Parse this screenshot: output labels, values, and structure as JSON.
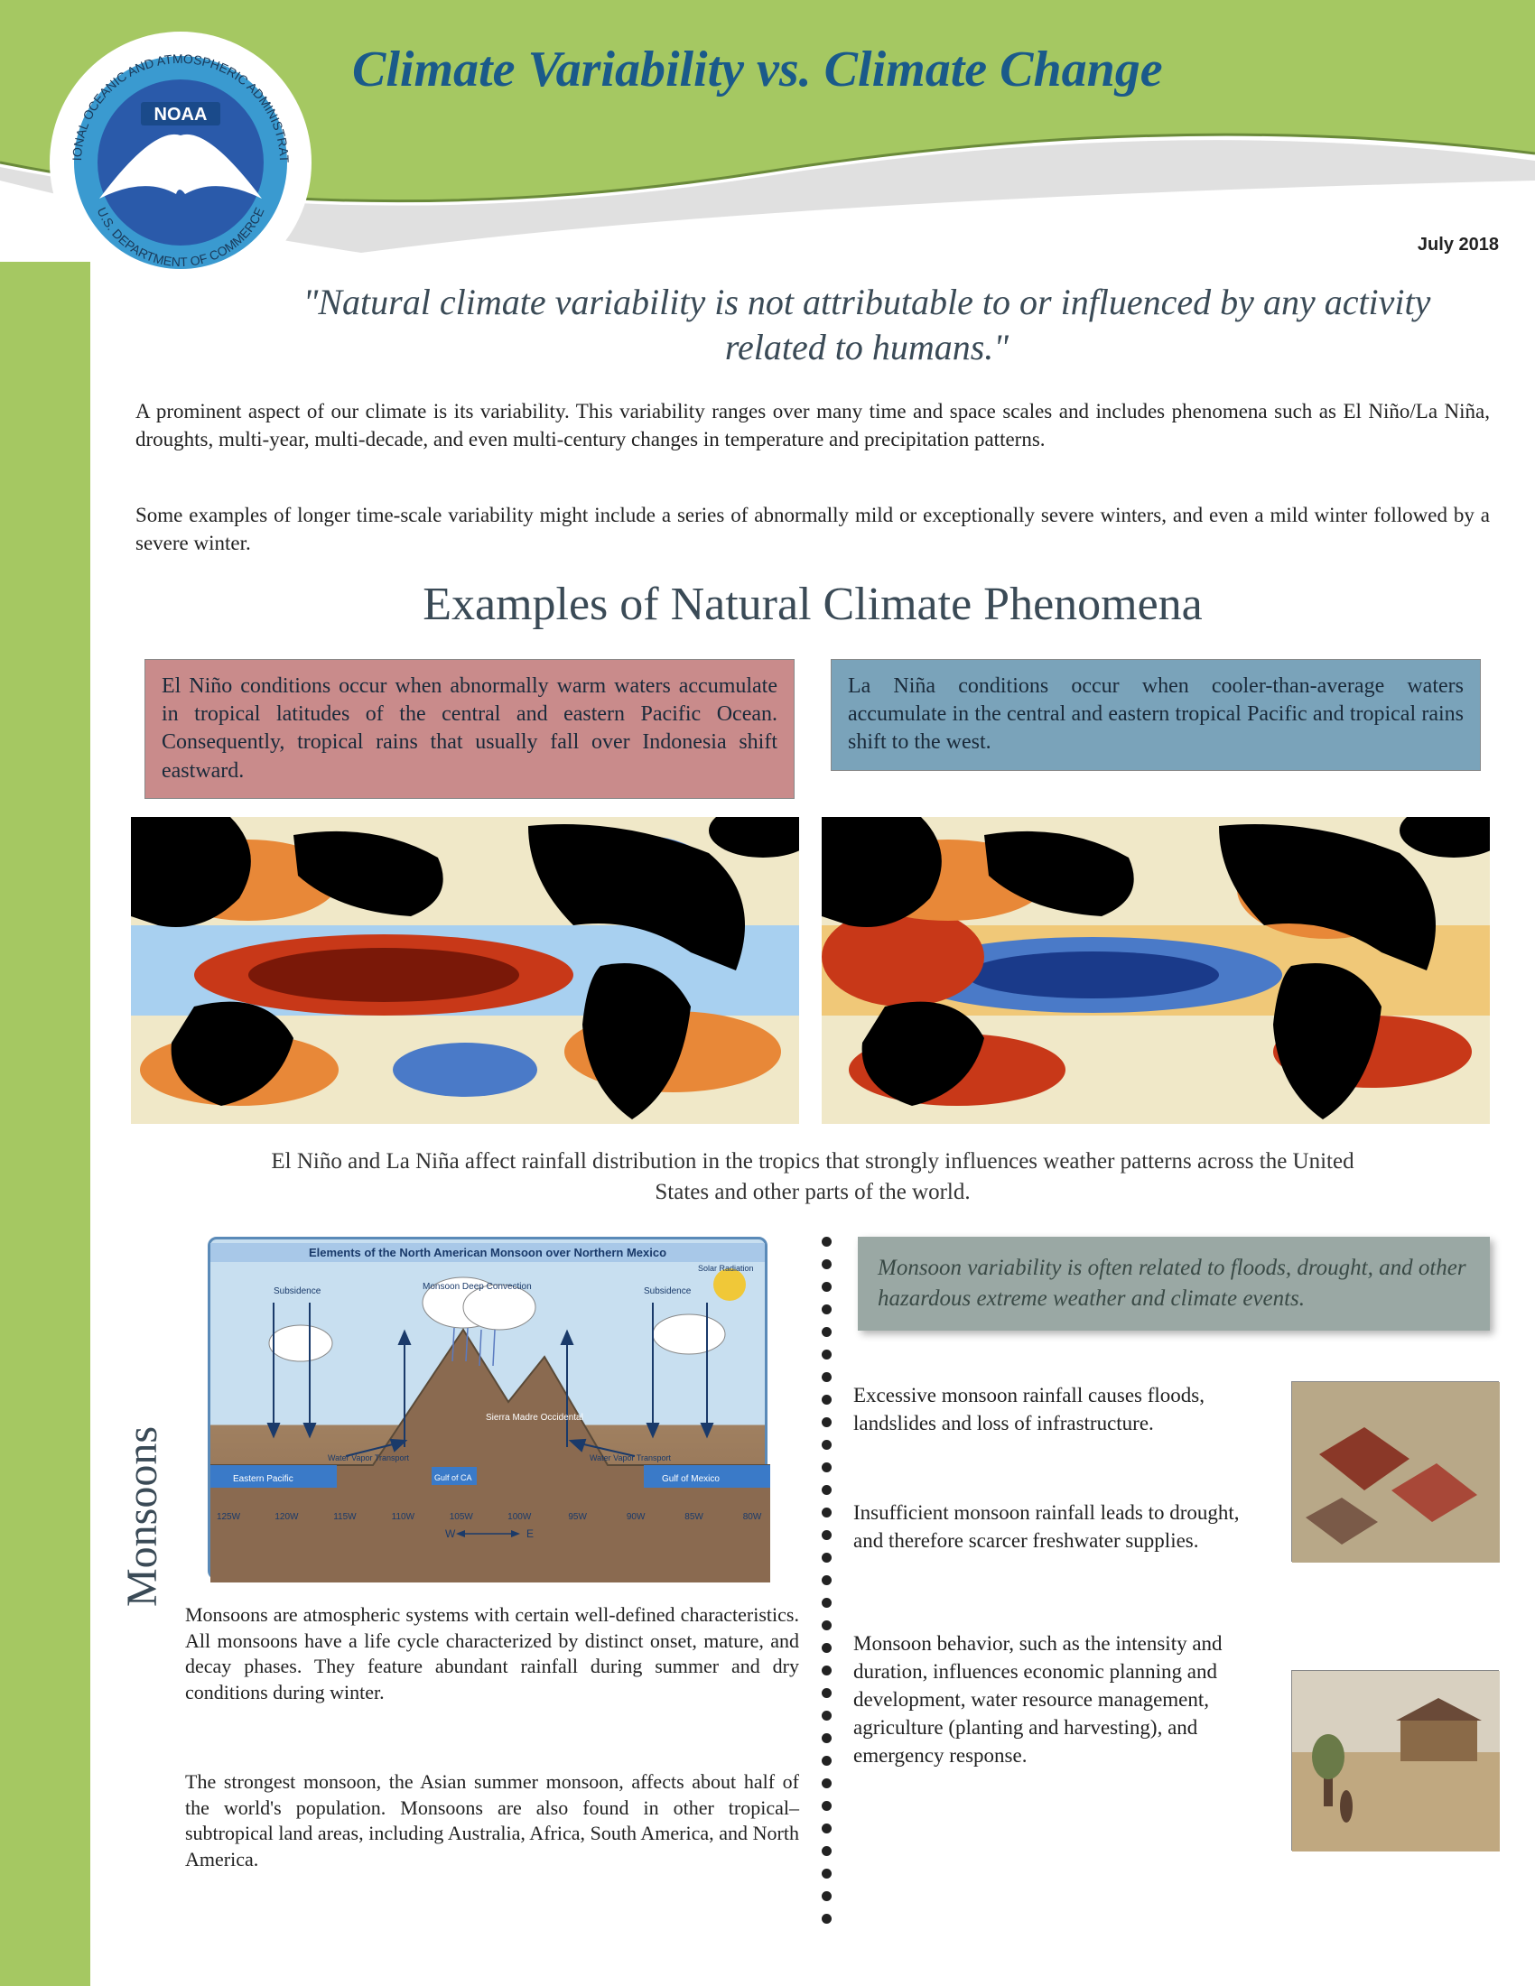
{
  "header": {
    "title": "Climate Variability vs. Climate Change",
    "date": "July 2018",
    "logo_text_top": "NATIONAL OCEANIC AND ATMOSPHERIC ADMINISTRATION",
    "logo_text_bottom": "U.S. DEPARTMENT OF COMMERCE",
    "logo_label": "NOAA",
    "title_color": "#1a5a8a",
    "band_color": "#a5c862"
  },
  "quote": "\"Natural climate variability is not attributable to or influenced by any activity related to humans.\"",
  "intro": {
    "p1": "A prominent aspect of our climate is its variability. This variability ranges over many time and space scales and includes phenomena such as El Niño/La Niña, droughts, multi-year, multi-decade, and even multi-century changes in temperature and precipitation patterns.",
    "p2": "Some examples of longer time-scale variability might include a series of abnormally mild or exceptionally severe winters, and even a mild winter followed by a severe winter."
  },
  "section_title": "Examples of Natural Climate Phenomena",
  "boxes": {
    "elnino": {
      "text": "El Niño conditions occur when abnormally warm waters accumulate in tropical latitudes of the central and eastern Pacific Ocean. Consequently, tropical rains that usually fall over Indonesia shift eastward.",
      "bg": "#c98b8b"
    },
    "lanina": {
      "text": "La Niña conditions occur when cooler-than-average waters accumulate in the central and eastern tropical Pacific and tropical rains shift to the west.",
      "bg": "#7aa3ba"
    }
  },
  "maps": {
    "type": "global-sst-anomaly-map",
    "palette": [
      "#1a3a8a",
      "#4a7ac8",
      "#a8d0f0",
      "#f0e8c8",
      "#f0c878",
      "#e88838",
      "#c83818",
      "#7a1808"
    ],
    "land_color": "#000000",
    "caption": "El Niño and La Niña affect rainfall distribution in the tropics that strongly influences weather patterns across the United States and other parts of the world."
  },
  "monsoons": {
    "label": "Monsoons",
    "diagram_title": "Elements of the North American Monsoon over Northern Mexico",
    "diagram_labels": {
      "deep_conv": "Monsoon Deep Convection",
      "subsidence": "Subsidence",
      "wv_transport": "Water Vapor Transport",
      "ep": "Eastern Pacific",
      "gc": "Gulf of CA",
      "smo": "Sierra Madre Occidental",
      "gm": "Gulf of Mexico",
      "solar": "Solar Radiation",
      "xticks": [
        "125W",
        "120W",
        "115W",
        "110W",
        "105W",
        "100W",
        "95W",
        "90W",
        "85W",
        "80W"
      ],
      "we": [
        "W",
        "E"
      ]
    },
    "p1": "Monsoons are atmospheric systems with certain well-defined characteristics. All monsoons have a life cycle characterized by distinct onset, mature, and decay phases. They feature abundant rainfall during summer and dry conditions during winter.",
    "p2": "The strongest monsoon, the Asian summer monsoon, affects about half of the world's population. Monsoons are also found in other tropical–subtropical land areas, including Australia, Africa, South America, and North America.",
    "quote_box": "Monsoon variability is often related to floods, drought, and other hazardous extreme weather and climate events.",
    "bullets": {
      "b1": "Excessive monsoon rainfall causes floods, landslides and loss of infrastructure.",
      "b2": "Insufficient monsoon rainfall leads to drought, and therefore scarcer freshwater supplies.",
      "b3": "Monsoon behavior, such as the intensity and duration, influences economic planning and development, water resource management, agriculture (planting and harvesting), and emergency response."
    }
  },
  "colors": {
    "body_text": "#222222",
    "heading_text": "#3a4a56",
    "quote_box_bg": "#9aa8a4"
  }
}
